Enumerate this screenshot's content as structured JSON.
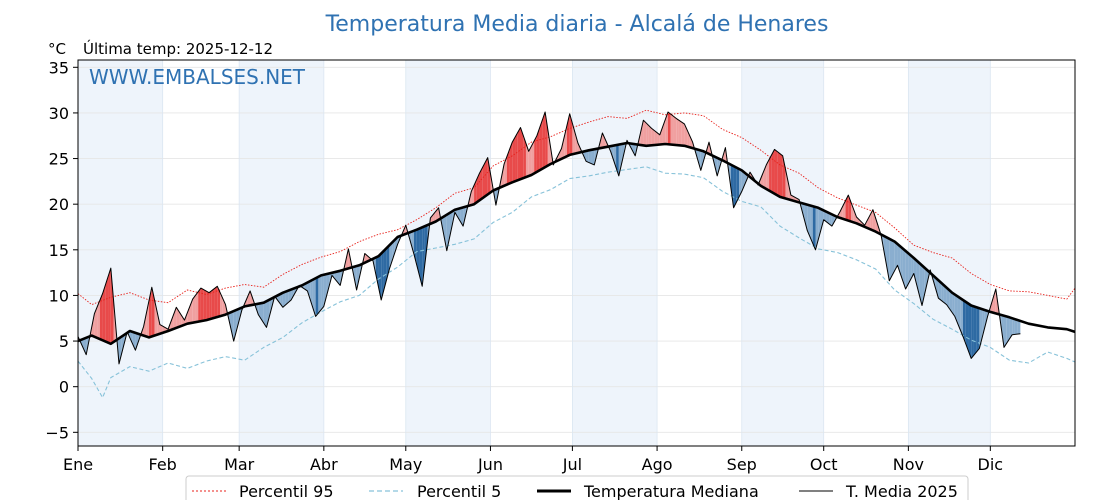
{
  "title": "Temperatura Media diaria - Alcalá de Henares",
  "unit_label": "°C",
  "last_temp_label": "Última temp: 2025-12-12",
  "watermark": "WWW.EMBALSES.NET",
  "legend": {
    "p95": "Percentil 95",
    "p5": "Percentil 5",
    "median": "Temperatura Mediana",
    "year": "T. Media 2025"
  },
  "colors": {
    "title": "#2f72b2",
    "p95": "#e8211b",
    "p5": "#87c2d9",
    "median": "#000000",
    "year": "#000000",
    "warm_fill": "#f0a0a0",
    "warm_extreme": "#e84a4a",
    "cold_fill": "#8aaecf",
    "cold_extreme": "#2e6aa3",
    "month_band": "#eef4fb"
  },
  "chart_data": {
    "type": "line",
    "title": "Temperatura Media diaria - Alcalá de Henares",
    "ylabel": "°C",
    "ylim": [
      -6.5,
      35.8
    ],
    "xlim": [
      0,
      365
    ],
    "yticks": [
      -5,
      0,
      5,
      10,
      15,
      20,
      25,
      30,
      35
    ],
    "yticklabels": [
      "−5",
      "0",
      "5",
      "10",
      "15",
      "20",
      "25",
      "30",
      "35"
    ],
    "months": [
      "Ene",
      "Feb",
      "Mar",
      "Abr",
      "May",
      "Jun",
      "Jul",
      "Ago",
      "Sep",
      "Oct",
      "Nov",
      "Dic"
    ],
    "month_start_days": [
      0,
      31,
      59,
      90,
      120,
      151,
      181,
      212,
      243,
      273,
      304,
      334
    ],
    "grid": true,
    "legend_position": "bottom",
    "series": [
      {
        "name": "Percentil 95",
        "style": "dotted-red",
        "x": [
          0,
          5,
          12,
          19,
          26,
          33,
          40,
          47,
          54,
          61,
          68,
          75,
          82,
          89,
          96,
          103,
          110,
          117,
          124,
          131,
          138,
          145,
          152,
          159,
          166,
          173,
          180,
          187,
          194,
          201,
          208,
          215,
          222,
          229,
          236,
          243,
          250,
          257,
          264,
          271,
          278,
          285,
          292,
          299,
          306,
          313,
          320,
          327,
          334,
          341,
          348,
          355,
          362,
          365
        ],
        "y": [
          10.2,
          9.0,
          9.8,
          10.3,
          9.5,
          9.2,
          10.6,
          10.1,
          10.8,
          11.2,
          10.9,
          12.3,
          13.4,
          14.2,
          14.8,
          15.9,
          16.7,
          17.2,
          18.3,
          19.6,
          21.2,
          21.8,
          24.2,
          25.3,
          26.8,
          27.4,
          28.3,
          29.0,
          29.6,
          29.4,
          30.3,
          29.8,
          30.0,
          29.7,
          28.2,
          27.3,
          25.9,
          24.3,
          23.4,
          21.8,
          20.7,
          19.9,
          19.1,
          17.4,
          15.5,
          14.7,
          14.1,
          12.4,
          11.2,
          10.5,
          10.4,
          10.0,
          9.6,
          10.8
        ]
      },
      {
        "name": "Percentil 5",
        "style": "dashed-lightblue",
        "x": [
          0,
          5,
          9,
          12,
          19,
          26,
          33,
          40,
          47,
          54,
          61,
          68,
          75,
          82,
          89,
          96,
          103,
          110,
          117,
          124,
          131,
          138,
          145,
          152,
          159,
          166,
          173,
          180,
          187,
          194,
          201,
          208,
          215,
          222,
          229,
          236,
          243,
          250,
          257,
          264,
          271,
          278,
          285,
          292,
          299,
          306,
          313,
          320,
          327,
          334,
          341,
          348,
          355,
          362,
          365
        ],
        "y": [
          2.8,
          0.9,
          -1.2,
          1.0,
          2.2,
          1.7,
          2.6,
          2.0,
          2.8,
          3.3,
          2.9,
          4.3,
          5.4,
          7.0,
          8.2,
          9.3,
          10.0,
          11.8,
          13.1,
          14.8,
          15.2,
          15.6,
          16.2,
          18.0,
          19.1,
          20.8,
          21.6,
          22.8,
          23.1,
          23.5,
          23.8,
          24.1,
          23.4,
          23.3,
          22.9,
          21.4,
          20.3,
          19.7,
          17.6,
          16.3,
          15.1,
          14.7,
          13.9,
          12.9,
          10.6,
          9.1,
          7.4,
          6.3,
          5.1,
          4.3,
          2.9,
          2.6,
          3.8,
          3.1,
          2.7
        ]
      },
      {
        "name": "Temperatura Mediana",
        "style": "thick-black",
        "x": [
          0,
          5,
          12,
          19,
          26,
          33,
          40,
          47,
          54,
          61,
          68,
          75,
          82,
          89,
          96,
          103,
          110,
          117,
          124,
          131,
          138,
          145,
          152,
          159,
          166,
          173,
          180,
          187,
          194,
          201,
          208,
          215,
          222,
          229,
          236,
          243,
          250,
          257,
          264,
          271,
          278,
          285,
          292,
          299,
          306,
          313,
          320,
          327,
          334,
          341,
          348,
          355,
          362,
          365
        ],
        "y": [
          5.0,
          5.6,
          4.7,
          6.1,
          5.4,
          6.1,
          6.9,
          7.3,
          7.9,
          8.8,
          9.2,
          10.3,
          11.1,
          12.2,
          12.7,
          13.3,
          14.3,
          16.4,
          17.2,
          18.1,
          19.4,
          20.0,
          21.5,
          22.4,
          23.2,
          24.4,
          25.4,
          25.9,
          26.3,
          26.7,
          26.4,
          26.6,
          26.4,
          25.8,
          24.8,
          23.7,
          22.0,
          20.8,
          20.2,
          19.6,
          18.6,
          17.9,
          17.0,
          15.9,
          14.1,
          12.2,
          10.3,
          8.9,
          8.2,
          7.6,
          6.9,
          6.5,
          6.3,
          6.0
        ]
      },
      {
        "name": "T. Media 2025",
        "style": "thin-black",
        "x": [
          0,
          3,
          6,
          9,
          12,
          15,
          18,
          21,
          24,
          27,
          30,
          33,
          36,
          39,
          42,
          45,
          48,
          51,
          54,
          57,
          60,
          63,
          66,
          69,
          72,
          75,
          78,
          81,
          84,
          87,
          90,
          93,
          96,
          99,
          102,
          105,
          108,
          111,
          114,
          117,
          120,
          123,
          126,
          129,
          132,
          135,
          138,
          141,
          144,
          147,
          150,
          153,
          156,
          159,
          162,
          165,
          168,
          171,
          174,
          177,
          180,
          183,
          186,
          189,
          192,
          195,
          198,
          201,
          204,
          207,
          210,
          213,
          216,
          219,
          222,
          225,
          228,
          231,
          234,
          237,
          240,
          243,
          246,
          249,
          252,
          255,
          258,
          261,
          264,
          267,
          270,
          273,
          276,
          279,
          282,
          285,
          288,
          291,
          294,
          297,
          300,
          303,
          306,
          309,
          312,
          315,
          318,
          321,
          324,
          327,
          330,
          333,
          336,
          339,
          342,
          345
        ],
        "y": [
          5.5,
          3.5,
          8.0,
          10.2,
          13.0,
          2.5,
          6.0,
          4.0,
          6.6,
          10.9,
          6.8,
          6.3,
          8.7,
          7.3,
          9.6,
          10.8,
          10.3,
          11.0,
          9.0,
          5.0,
          8.4,
          10.5,
          7.9,
          6.5,
          9.9,
          8.7,
          9.5,
          11.1,
          10.5,
          7.7,
          8.8,
          12.2,
          11.1,
          15.1,
          10.6,
          14.6,
          13.8,
          9.5,
          12.9,
          15.6,
          17.7,
          14.5,
          11.0,
          18.5,
          19.6,
          14.9,
          19.1,
          17.6,
          21.4,
          23.4,
          25.1,
          19.9,
          24.4,
          26.8,
          28.4,
          25.8,
          27.5,
          30.1,
          24.3,
          26.1,
          29.9,
          26.7,
          24.7,
          24.3,
          27.8,
          25.8,
          23.1,
          27.0,
          25.3,
          29.2,
          28.3,
          27.6,
          30.1,
          29.4,
          28.8,
          26.8,
          23.7,
          26.8,
          23.1,
          26.2,
          19.6,
          21.4,
          23.5,
          22.1,
          24.3,
          26.0,
          25.3,
          21.0,
          20.5,
          17.1,
          15.0,
          18.3,
          17.6,
          19.2,
          21.0,
          18.6,
          17.7,
          19.4,
          16.6,
          11.6,
          13.3,
          10.7,
          12.4,
          8.9,
          12.8,
          9.7,
          9.0,
          7.7,
          5.5,
          3.1,
          4.2,
          7.7,
          10.7,
          4.3,
          5.7,
          5.8
        ]
      }
    ],
    "anomaly_shading": "area between T. Media 2025 and Temperatura Mediana: red where above, blue where below; darker where beyond percentiles"
  }
}
